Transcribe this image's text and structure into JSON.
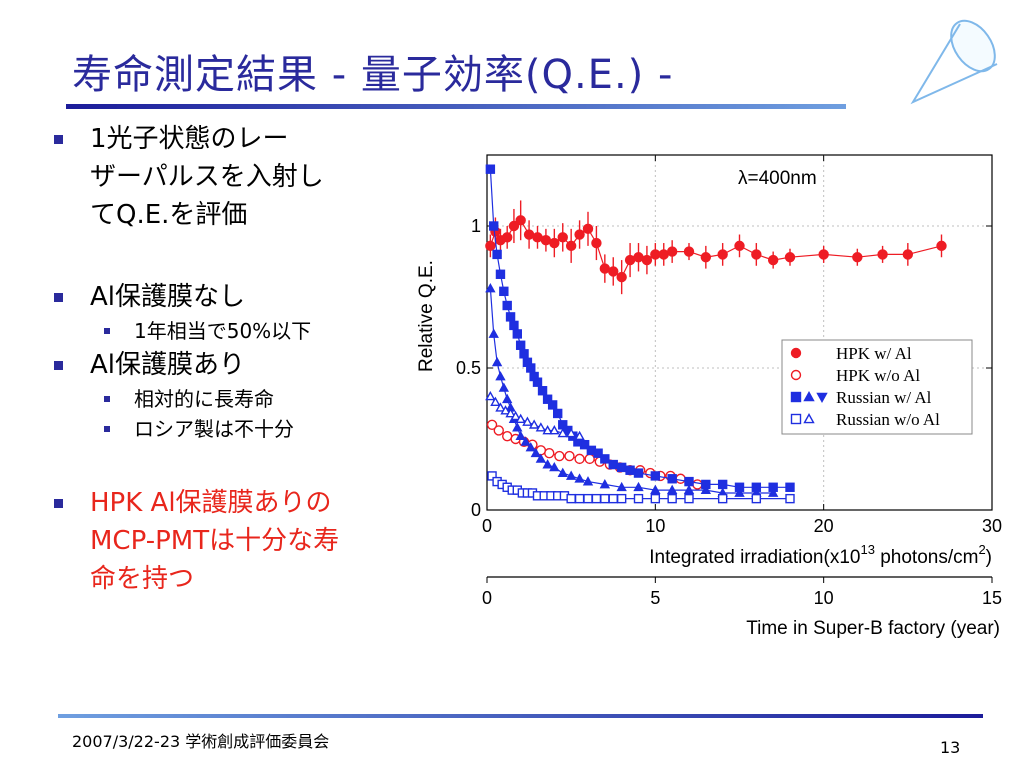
{
  "slide": {
    "title": "寿命測定結果 - 量子効率(Q.E.) -",
    "footer_left": "2007/3/22-23 学術創成評価委員会",
    "page_number": "13"
  },
  "bullets": {
    "b1_line1": "1光子状態のレー",
    "b1_line2": "ザーパルスを入射し",
    "b1_line3": "てQ.E.を評価",
    "b2": "Al保護膜なし",
    "b2_sub1": "1年相当で50%以下",
    "b3": "Al保護膜あり",
    "b3_sub1": "相対的に長寿命",
    "b3_sub2": "ロシア製は不十分",
    "b4_line1": "HPK Al保護膜ありの",
    "b4_line2": "MCP-PMTは十分な寿",
    "b4_line3": "命を持つ"
  },
  "colors": {
    "accent": "#2a2a9c",
    "highlight": "#e8261c",
    "hpk": "#ee1c24",
    "russian": "#1f2fe0"
  },
  "chart_data": {
    "type": "scatter",
    "annotation": "λ=400nm",
    "ylabel": "Relative Q.E.",
    "xlabel_main": "Integrated irradiation(x10",
    "xlabel_exp1": "13",
    "xlabel_mid": " photons/cm",
    "xlabel_exp2": "2",
    "xlabel_end": ")",
    "xlim": [
      0,
      30
    ],
    "ylim": [
      0,
      1.25
    ],
    "xticks": [
      0,
      10,
      20,
      30
    ],
    "yticks": [
      0,
      0.5,
      1
    ],
    "secondary_axis": {
      "label": "Time in Super-B factory (year)",
      "ticks": [
        0,
        5,
        10,
        15
      ],
      "range": [
        0,
        15
      ]
    },
    "legend_position": "right",
    "series": [
      {
        "name": "HPK w/ Al",
        "marker": "circle",
        "filled": true,
        "color": "#ee1c24",
        "x": [
          0.2,
          0.5,
          0.8,
          1.2,
          1.6,
          2.0,
          2.5,
          3.0,
          3.5,
          4.0,
          4.5,
          5.0,
          5.5,
          6.0,
          6.5,
          7.0,
          7.5,
          8.0,
          8.5,
          9.0,
          9.5,
          10.0,
          10.5,
          11.0,
          12.0,
          13.0,
          14.0,
          15.0,
          16.0,
          17.0,
          18.0,
          20.0,
          22.0,
          23.5,
          25.0,
          27.0
        ],
        "y": [
          0.93,
          0.98,
          0.95,
          0.96,
          1.0,
          1.02,
          0.97,
          0.96,
          0.95,
          0.94,
          0.96,
          0.93,
          0.97,
          0.99,
          0.94,
          0.85,
          0.84,
          0.82,
          0.88,
          0.89,
          0.88,
          0.9,
          0.9,
          0.91,
          0.91,
          0.89,
          0.9,
          0.93,
          0.9,
          0.88,
          0.89,
          0.9,
          0.89,
          0.9,
          0.9,
          0.93
        ],
        "yerr": [
          0.04,
          0.05,
          0.04,
          0.04,
          0.06,
          0.07,
          0.05,
          0.04,
          0.04,
          0.05,
          0.05,
          0.06,
          0.05,
          0.06,
          0.06,
          0.05,
          0.05,
          0.06,
          0.06,
          0.05,
          0.05,
          0.04,
          0.04,
          0.04,
          0.03,
          0.04,
          0.04,
          0.04,
          0.04,
          0.03,
          0.03,
          0.03,
          0.03,
          0.03,
          0.04,
          0.04
        ]
      },
      {
        "name": "HPK w/o Al",
        "marker": "circle",
        "filled": false,
        "color": "#ee1c24",
        "x": [
          0.3,
          0.7,
          1.2,
          1.7,
          2.2,
          2.7,
          3.2,
          3.7,
          4.3,
          4.9,
          5.5,
          6.1,
          6.7,
          7.3,
          7.9,
          8.5,
          9.1,
          9.7,
          10.3,
          10.9,
          11.5,
          12.5
        ],
        "y": [
          0.3,
          0.28,
          0.26,
          0.25,
          0.24,
          0.23,
          0.21,
          0.2,
          0.19,
          0.19,
          0.18,
          0.18,
          0.17,
          0.16,
          0.15,
          0.14,
          0.14,
          0.13,
          0.12,
          0.12,
          0.11,
          0.09
        ]
      },
      {
        "name": "Russian w/ Al (squares)",
        "marker": "square",
        "filled": true,
        "color": "#1f2fe0",
        "x": [
          0.2,
          0.4,
          0.6,
          0.8,
          1.0,
          1.2,
          1.4,
          1.6,
          1.8,
          2.0,
          2.2,
          2.4,
          2.6,
          2.8,
          3.0,
          3.3,
          3.6,
          3.9,
          4.2,
          4.5,
          4.8,
          5.1,
          5.4,
          5.8,
          6.2,
          6.6,
          7.0,
          7.5,
          8.0,
          8.5,
          9.0,
          10.0,
          11.0,
          12.0,
          13.0,
          14.0,
          15.0,
          16.0,
          17.0,
          18.0
        ],
        "y": [
          1.2,
          1.0,
          0.9,
          0.83,
          0.77,
          0.72,
          0.68,
          0.65,
          0.62,
          0.58,
          0.55,
          0.52,
          0.5,
          0.47,
          0.45,
          0.42,
          0.39,
          0.37,
          0.34,
          0.3,
          0.28,
          0.26,
          0.24,
          0.23,
          0.21,
          0.2,
          0.18,
          0.16,
          0.15,
          0.14,
          0.13,
          0.12,
          0.11,
          0.1,
          0.09,
          0.09,
          0.08,
          0.08,
          0.08,
          0.08
        ]
      },
      {
        "name": "Russian w/ Al (triangles)",
        "marker": "triangle",
        "filled": true,
        "color": "#1f2fe0",
        "x": [
          0.2,
          0.4,
          0.6,
          0.8,
          1.0,
          1.2,
          1.4,
          1.6,
          1.8,
          2.0,
          2.3,
          2.6,
          2.9,
          3.2,
          3.6,
          4.0,
          4.5,
          5.0,
          5.5,
          6.0,
          7.0,
          8.0,
          9.0,
          10.0,
          11.0,
          12.0,
          13.0,
          14.0,
          15.0,
          16.0,
          17.0
        ],
        "y": [
          0.78,
          0.62,
          0.52,
          0.47,
          0.43,
          0.39,
          0.36,
          0.32,
          0.29,
          0.26,
          0.24,
          0.22,
          0.2,
          0.18,
          0.16,
          0.15,
          0.13,
          0.12,
          0.11,
          0.1,
          0.09,
          0.08,
          0.08,
          0.07,
          0.07,
          0.07,
          0.07,
          0.06,
          0.06,
          0.06,
          0.06
        ]
      },
      {
        "name": "Russian w/o Al (squares)",
        "marker": "square",
        "filled": false,
        "color": "#1f2fe0",
        "x": [
          0.3,
          0.6,
          0.9,
          1.2,
          1.5,
          1.8,
          2.1,
          2.4,
          2.7,
          3.0,
          3.4,
          3.8,
          4.2,
          4.6,
          5.0,
          5.5,
          6.0,
          6.5,
          7.0,
          7.5,
          8.0,
          9.0,
          10.0,
          11.0,
          12.0,
          14.0,
          16.0,
          18.0
        ],
        "y": [
          0.12,
          0.1,
          0.09,
          0.08,
          0.07,
          0.07,
          0.06,
          0.06,
          0.06,
          0.05,
          0.05,
          0.05,
          0.05,
          0.05,
          0.04,
          0.04,
          0.04,
          0.04,
          0.04,
          0.04,
          0.04,
          0.04,
          0.04,
          0.04,
          0.04,
          0.04,
          0.04,
          0.04
        ]
      },
      {
        "name": "Russian w/o Al (triangles)",
        "marker": "triangle",
        "filled": false,
        "color": "#1f2fe0",
        "x": [
          0.2,
          0.5,
          0.8,
          1.1,
          1.4,
          1.7,
          2.0,
          2.4,
          2.8,
          3.2,
          3.6,
          4.0,
          4.5,
          5.0,
          5.5
        ],
        "y": [
          0.4,
          0.38,
          0.36,
          0.35,
          0.34,
          0.33,
          0.32,
          0.31,
          0.3,
          0.29,
          0.28,
          0.28,
          0.27,
          0.27,
          0.26
        ]
      }
    ],
    "legend": [
      {
        "label": "HPK w/ Al",
        "symbols": [
          {
            "marker": "circle",
            "filled": true
          }
        ]
      },
      {
        "label": "HPK w/o Al",
        "symbols": [
          {
            "marker": "circle",
            "filled": false
          }
        ]
      },
      {
        "label": "Russian w/ Al",
        "symbols": [
          {
            "marker": "square",
            "filled": true
          },
          {
            "marker": "triangle",
            "filled": true
          },
          {
            "marker": "triangle-down",
            "filled": true
          }
        ]
      },
      {
        "label": "Russian w/o Al",
        "symbols": [
          {
            "marker": "square",
            "filled": false
          },
          {
            "marker": "triangle",
            "filled": false
          }
        ]
      }
    ]
  }
}
